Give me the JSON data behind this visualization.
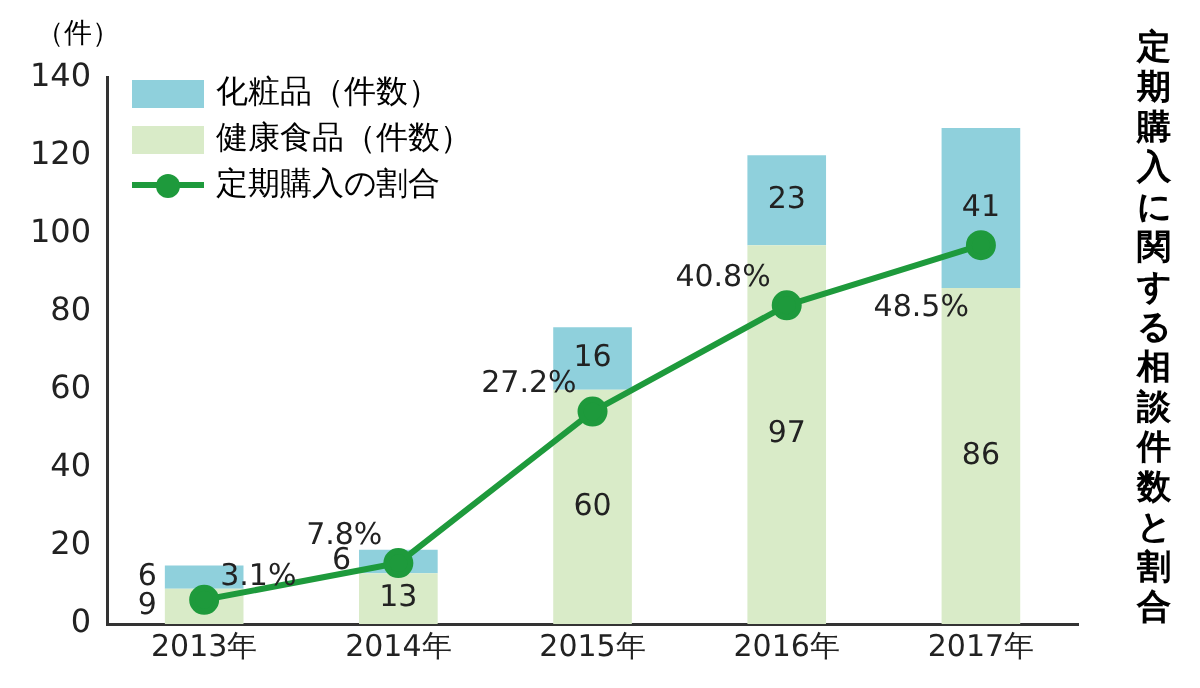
{
  "chart_data": {
    "type": "bar",
    "title": "定期購入に関する相談件数と割合",
    "ylabel": "（件）",
    "categories": [
      "2013年",
      "2014年",
      "2015年",
      "2016年",
      "2017年"
    ],
    "stacked": true,
    "series": [
      {
        "name": "健康食品（件数）",
        "color": "#d9ebc8",
        "values": [
          9,
          13,
          60,
          97,
          86
        ],
        "value_labels": [
          "9",
          "13",
          "60",
          "97",
          "86"
        ]
      },
      {
        "name": "化粧品（件数）",
        "color": "#8fd0dc",
        "values": [
          6,
          6,
          16,
          23,
          41
        ],
        "value_labels": [
          "6",
          "6",
          "16",
          "23",
          "41"
        ]
      },
      {
        "name": "定期購入の割合",
        "type": "line",
        "axis": "y2",
        "color": "#1e9a3c",
        "values": [
          3.1,
          7.8,
          27.2,
          40.8,
          48.5
        ],
        "value_labels": [
          "3.1%",
          "7.8%",
          "27.2%",
          "40.8%",
          "48.5%"
        ]
      }
    ],
    "ylim": [
      0,
      140
    ],
    "yticks": [
      0,
      20,
      40,
      60,
      80,
      100,
      120,
      140
    ],
    "y2lim": [
      0,
      70
    ],
    "grid": false,
    "legend": "top left",
    "marker": "circle",
    "line_style": "solid"
  }
}
